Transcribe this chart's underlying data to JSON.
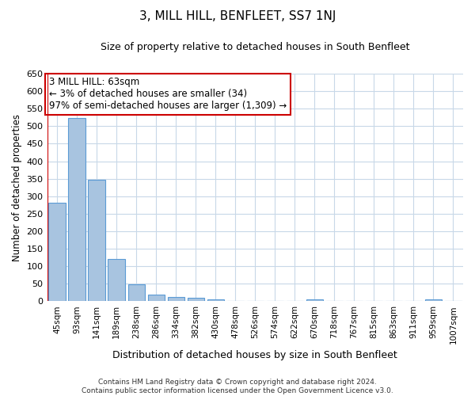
{
  "title": "3, MILL HILL, BENFLEET, SS7 1NJ",
  "subtitle": "Size of property relative to detached houses in South Benfleet",
  "xlabel": "Distribution of detached houses by size in South Benfleet",
  "ylabel": "Number of detached properties",
  "footer_line1": "Contains HM Land Registry data © Crown copyright and database right 2024.",
  "footer_line2": "Contains public sector information licensed under the Open Government Licence v3.0.",
  "annotation_line1": "3 MILL HILL: 63sqm",
  "annotation_line2": "← 3% of detached houses are smaller (34)",
  "annotation_line3": "97% of semi-detached houses are larger (1,309) →",
  "bar_color": "#a8c4e0",
  "bar_edge_color": "#5b9bd5",
  "highlight_color": "#cc0000",
  "categories": [
    "45sqm",
    "93sqm",
    "141sqm",
    "189sqm",
    "238sqm",
    "286sqm",
    "334sqm",
    "382sqm",
    "430sqm",
    "478sqm",
    "526sqm",
    "574sqm",
    "622sqm",
    "670sqm",
    "718sqm",
    "767sqm",
    "815sqm",
    "863sqm",
    "911sqm",
    "959sqm",
    "1007sqm"
  ],
  "values": [
    281,
    524,
    347,
    120,
    48,
    18,
    12,
    10,
    6,
    0,
    0,
    0,
    0,
    5,
    0,
    0,
    0,
    0,
    0,
    5,
    0
  ],
  "ylim": [
    0,
    650
  ],
  "yticks": [
    0,
    50,
    100,
    150,
    200,
    250,
    300,
    350,
    400,
    450,
    500,
    550,
    600,
    650
  ],
  "bg_color": "#ffffff",
  "grid_color": "#c8d8e8",
  "annotation_box_color": "#ffffff",
  "annotation_box_edge": "#cc0000",
  "figsize": [
    6.0,
    5.0
  ],
  "dpi": 100
}
